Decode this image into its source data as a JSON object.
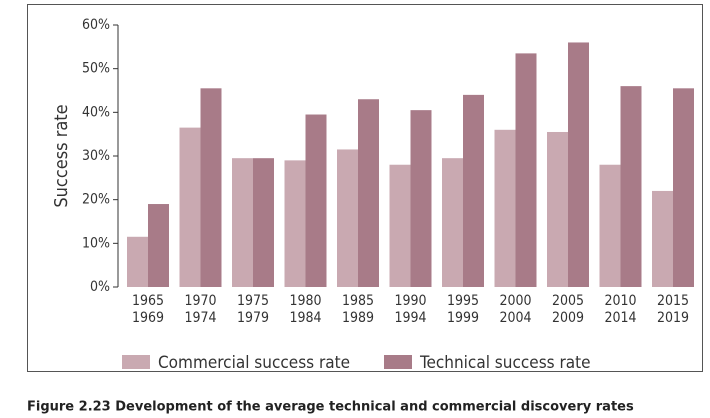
{
  "chart_data": {
    "type": "bar",
    "ylabel": "Success rate",
    "caption": "Figure 2.23 Development of the average technical and commercial discovery rates",
    "categories": [
      [
        "1965",
        "1969"
      ],
      [
        "1970",
        "1974"
      ],
      [
        "1975",
        "1979"
      ],
      [
        "1980",
        "1984"
      ],
      [
        "1985",
        "1989"
      ],
      [
        "1990",
        "1994"
      ],
      [
        "1995",
        "1999"
      ],
      [
        "2000",
        "2004"
      ],
      [
        "2005",
        "2009"
      ],
      [
        "2010",
        "2014"
      ],
      [
        "2015",
        "2019"
      ]
    ],
    "series": [
      {
        "name": "Commercial success rate",
        "color": "#c9a9b1",
        "values": [
          11.5,
          36.5,
          29.5,
          29,
          31.5,
          28,
          29.5,
          36,
          35.5,
          28,
          22
        ]
      },
      {
        "name": "Technical success rate",
        "color": "#a87b88",
        "values": [
          19,
          45.5,
          29.5,
          39.5,
          43,
          40.5,
          44,
          53.5,
          56,
          46,
          45.5
        ]
      }
    ],
    "ylim": [
      0,
      60
    ],
    "yticks": [
      {
        "value": 0,
        "label": "0%"
      },
      {
        "value": 10,
        "label": "10%"
      },
      {
        "value": 20,
        "label": "20%"
      },
      {
        "value": 30,
        "label": "30%"
      },
      {
        "value": 40,
        "label": "40%"
      },
      {
        "value": 50,
        "label": "50%"
      },
      {
        "value": 60,
        "label": "60%"
      }
    ],
    "grid": false
  }
}
